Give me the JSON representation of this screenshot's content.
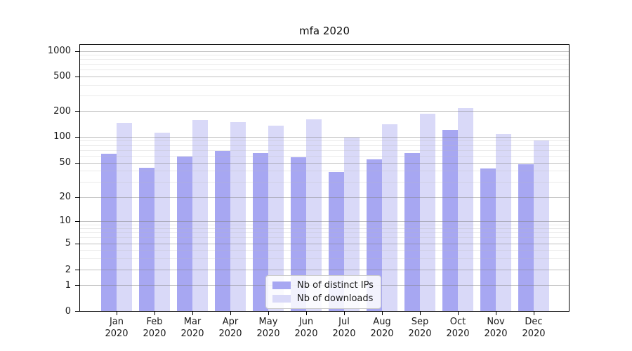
{
  "chart_data": {
    "type": "bar",
    "title": "mfa 2020",
    "x_axis": {
      "months": [
        "Jan",
        "Feb",
        "Mar",
        "Apr",
        "May",
        "Jun",
        "Jul",
        "Aug",
        "Sep",
        "Oct",
        "Nov",
        "Dec"
      ],
      "year": "2020"
    },
    "y_axis": {
      "scale": "symlog",
      "ticks": [
        0,
        1,
        2,
        5,
        10,
        20,
        50,
        100,
        200,
        500,
        1000
      ],
      "minor_ticks": [
        3,
        4,
        6,
        7,
        8,
        9,
        30,
        40,
        60,
        70,
        80,
        90,
        300,
        400,
        600,
        700,
        800,
        900
      ],
      "ylim": [
        0,
        1220
      ]
    },
    "series": [
      {
        "name": "Nb of distinct IPs",
        "color": "#a7a7f2",
        "values": [
          64,
          44,
          59,
          69,
          65,
          58,
          39,
          55,
          65,
          122,
          43,
          48
        ]
      },
      {
        "name": "Nb of downloads",
        "color": "#d9d9f8",
        "values": [
          146,
          112,
          157,
          151,
          135,
          161,
          98,
          142,
          187,
          219,
          108,
          92
        ]
      }
    ],
    "legend_position": "lower center",
    "grid": "on",
    "colors": {
      "major_grid": "#bababa",
      "minor_grid": "#ececec",
      "axis": "#000000",
      "text": "#1a1a1a",
      "background": "#ffffff"
    }
  }
}
